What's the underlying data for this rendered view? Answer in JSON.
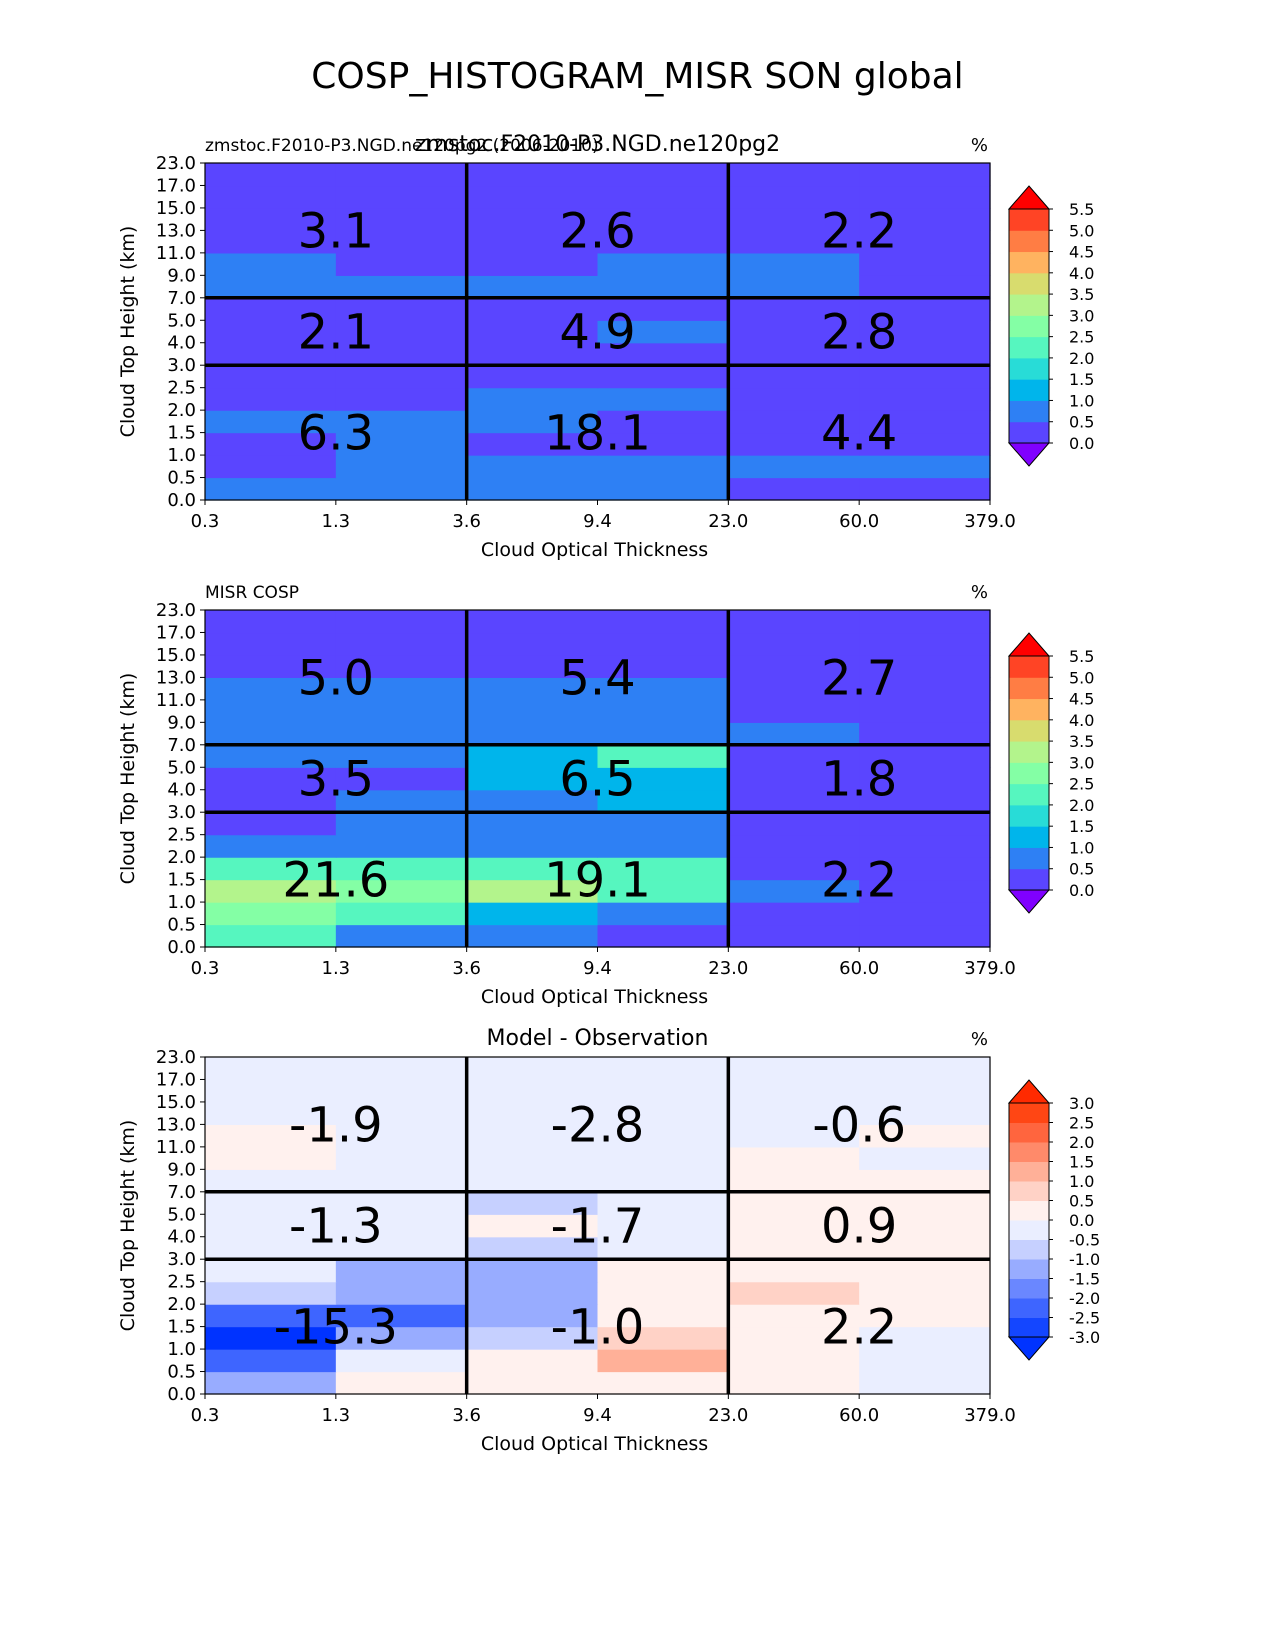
{
  "figure": {
    "title": "COSP_HISTOGRAM_MISR SON global"
  },
  "chart_data": [
    {
      "type": "heatmap",
      "title": "zmstoc.F2010-P3.NGD.ne120pg2",
      "left_title": "zmstoc.F2010-P3.NGD.ne120pg2 (2006-2010)",
      "units": "%",
      "xlabel": "Cloud Optical Thickness",
      "ylabel": "Cloud Top Height (km)",
      "x_ticks": [
        "0.3",
        "1.3",
        "3.6",
        "9.4",
        "23.0",
        "60.0",
        "379.0"
      ],
      "y_ticks": [
        "0.0",
        "0.5",
        "1.0",
        "1.5",
        "2.0",
        "2.5",
        "3.0",
        "4.0",
        "5.0",
        "7.0",
        "9.0",
        "11.0",
        "13.0",
        "15.0",
        "17.0",
        "23.0"
      ],
      "colormap": "rainbow",
      "levels": [
        0.0,
        0.5,
        1.0,
        1.5,
        2.0,
        2.5,
        3.0,
        3.5,
        4.0,
        4.5,
        5.0,
        5.5
      ],
      "colorbar_labels": [
        "0.0",
        "0.5",
        "1.0",
        "1.5",
        "2.0",
        "2.5",
        "3.0",
        "3.5",
        "4.0",
        "4.5",
        "5.0",
        "5.5"
      ],
      "values": [
        [
          0.6,
          0.6,
          0.6,
          0.6,
          0.3,
          0.3
        ],
        [
          0.3,
          0.6,
          0.6,
          0.6,
          0.6,
          0.6
        ],
        [
          0.3,
          0.6,
          0.3,
          0.3,
          0.3,
          0.3
        ],
        [
          0.6,
          0.6,
          0.6,
          0.3,
          0.3,
          0.3
        ],
        [
          0.3,
          0.3,
          0.6,
          0.6,
          0.3,
          0.3
        ],
        [
          0.3,
          0.3,
          0.3,
          0.3,
          0.3,
          0.3
        ],
        [
          0.3,
          0.3,
          0.3,
          0.3,
          0.3,
          0.3
        ],
        [
          0.3,
          0.3,
          0.3,
          0.6,
          0.3,
          0.3
        ],
        [
          0.3,
          0.3,
          0.3,
          0.3,
          0.3,
          0.3
        ],
        [
          0.6,
          0.6,
          0.6,
          0.6,
          0.6,
          0.3
        ],
        [
          0.6,
          0.3,
          0.3,
          0.6,
          0.6,
          0.3
        ],
        [
          0.3,
          0.3,
          0.3,
          0.3,
          0.3,
          0.3
        ],
        [
          0.3,
          0.3,
          0.3,
          0.3,
          0.3,
          0.3
        ],
        [
          0.3,
          0.3,
          0.3,
          0.3,
          0.3,
          0.3
        ],
        [
          0.3,
          0.3,
          0.3,
          0.3,
          0.3,
          0.3
        ]
      ],
      "block_labels": [
        [
          "6.3",
          "18.1",
          "4.4"
        ],
        [
          "2.1",
          "4.9",
          "2.8"
        ],
        [
          "3.1",
          "2.6",
          "2.2"
        ]
      ]
    },
    {
      "type": "heatmap",
      "title": "",
      "left_title": "MISR COSP",
      "units": "%",
      "xlabel": "Cloud Optical Thickness",
      "ylabel": "Cloud Top Height (km)",
      "x_ticks": [
        "0.3",
        "1.3",
        "3.6",
        "9.4",
        "23.0",
        "60.0",
        "379.0"
      ],
      "y_ticks": [
        "0.0",
        "0.5",
        "1.0",
        "1.5",
        "2.0",
        "2.5",
        "3.0",
        "4.0",
        "5.0",
        "7.0",
        "9.0",
        "11.0",
        "13.0",
        "15.0",
        "17.0",
        "23.0"
      ],
      "colormap": "rainbow",
      "levels": [
        0.0,
        0.5,
        1.0,
        1.5,
        2.0,
        2.5,
        3.0,
        3.5,
        4.0,
        4.5,
        5.0,
        5.5
      ],
      "colorbar_labels": [
        "0.0",
        "0.5",
        "1.0",
        "1.5",
        "2.0",
        "2.5",
        "3.0",
        "3.5",
        "4.0",
        "4.5",
        "5.0",
        "5.5"
      ],
      "values": [
        [
          2.3,
          0.6,
          0.6,
          0.3,
          0.3,
          0.3
        ],
        [
          2.7,
          2.2,
          1.3,
          0.6,
          0.3,
          0.3
        ],
        [
          3.3,
          2.7,
          3.3,
          2.3,
          0.6,
          0.3
        ],
        [
          2.3,
          2.3,
          2.3,
          2.3,
          0.3,
          0.3
        ],
        [
          0.6,
          0.6,
          0.6,
          0.6,
          0.3,
          0.3
        ],
        [
          0.3,
          0.6,
          0.6,
          0.6,
          0.3,
          0.3
        ],
        [
          0.3,
          0.6,
          0.6,
          1.3,
          0.3,
          0.3
        ],
        [
          0.3,
          0.3,
          1.3,
          1.3,
          0.3,
          0.3
        ],
        [
          0.6,
          0.6,
          1.3,
          2.3,
          0.3,
          0.3
        ],
        [
          0.6,
          0.6,
          0.6,
          0.6,
          0.6,
          0.3
        ],
        [
          0.6,
          0.6,
          0.6,
          0.6,
          0.3,
          0.3
        ],
        [
          0.6,
          0.6,
          0.6,
          0.6,
          0.3,
          0.3
        ],
        [
          0.3,
          0.3,
          0.3,
          0.3,
          0.3,
          0.3
        ],
        [
          0.3,
          0.3,
          0.3,
          0.3,
          0.3,
          0.3
        ],
        [
          0.3,
          0.3,
          0.3,
          0.3,
          0.3,
          0.3
        ]
      ],
      "block_labels": [
        [
          "21.6",
          "19.1",
          "2.2"
        ],
        [
          "3.5",
          "6.5",
          "1.8"
        ],
        [
          "5.0",
          "5.4",
          "2.7"
        ]
      ]
    },
    {
      "type": "heatmap",
      "title": "Model - Observation",
      "left_title": "",
      "units": "%",
      "xlabel": "Cloud Optical Thickness",
      "ylabel": "Cloud Top Height (km)",
      "x_ticks": [
        "0.3",
        "1.3",
        "3.6",
        "9.4",
        "23.0",
        "60.0",
        "379.0"
      ],
      "y_ticks": [
        "0.0",
        "0.5",
        "1.0",
        "1.5",
        "2.0",
        "2.5",
        "3.0",
        "4.0",
        "5.0",
        "7.0",
        "9.0",
        "11.0",
        "13.0",
        "15.0",
        "17.0",
        "23.0"
      ],
      "colormap": "bwr",
      "levels": [
        -3.0,
        -2.5,
        -2.0,
        -1.5,
        -1.0,
        -0.5,
        0.0,
        0.5,
        1.0,
        1.5,
        2.0,
        2.5,
        3.0
      ],
      "colorbar_labels": [
        "-3.0",
        "-2.5",
        "-2.0",
        "-1.5",
        "-1.0",
        "-0.5",
        "0.0",
        "0.5",
        "1.0",
        "1.5",
        "2.0",
        "2.5",
        "3.0"
      ],
      "values": [
        [
          -1.3,
          0.2,
          0.2,
          0.2,
          0.2,
          -0.2
        ],
        [
          -2.3,
          -0.2,
          0.2,
          1.3,
          0.2,
          -0.2
        ],
        [
          -3.1,
          -1.3,
          -0.8,
          0.8,
          0.2,
          -0.2
        ],
        [
          -2.3,
          -2.3,
          -1.3,
          0.2,
          0.2,
          0.2
        ],
        [
          -0.8,
          -1.3,
          -1.3,
          0.2,
          0.8,
          0.2
        ],
        [
          -0.2,
          -1.3,
          -1.3,
          0.2,
          0.2,
          0.2
        ],
        [
          -0.2,
          -0.2,
          -0.8,
          -0.2,
          0.2,
          0.2
        ],
        [
          -0.2,
          -0.2,
          0.1,
          -0.2,
          0.2,
          0.2
        ],
        [
          -0.2,
          -0.2,
          -0.8,
          -0.2,
          0.2,
          0.2
        ],
        [
          -0.2,
          -0.2,
          -0.2,
          -0.2,
          0.2,
          0.2
        ],
        [
          0.2,
          -0.2,
          -0.2,
          -0.2,
          0.2,
          -0.2
        ],
        [
          0.2,
          -0.2,
          -0.2,
          -0.2,
          -0.2,
          0.2
        ],
        [
          -0.2,
          -0.2,
          -0.2,
          -0.2,
          -0.2,
          -0.2
        ],
        [
          -0.2,
          -0.2,
          -0.2,
          -0.2,
          -0.2,
          -0.2
        ],
        [
          -0.2,
          -0.2,
          -0.2,
          -0.2,
          -0.2,
          -0.2
        ]
      ],
      "block_labels": [
        [
          "-15.3",
          "-1.0",
          "2.2"
        ],
        [
          "-1.3",
          "-1.7",
          "0.9"
        ],
        [
          "-1.9",
          "-2.8",
          "-0.6"
        ]
      ]
    }
  ],
  "colors": {
    "rainbow": [
      "#8000ff",
      "#5a45ff",
      "#2e80f4",
      "#00b5eb",
      "#28dcd7",
      "#56f6bf",
      "#84ffa5",
      "#b3f48c",
      "#d8dc6e",
      "#ffb360",
      "#ff7d44",
      "#ff4425",
      "#ff0000"
    ],
    "bwr": [
      "#0033ff",
      "#1446ff",
      "#3e65ff",
      "#6a87ff",
      "#98acff",
      "#c6d0ff",
      "#eaeeff",
      "#fff1ee",
      "#ffd2c6",
      "#ffb098",
      "#ff8a6a",
      "#ff653e",
      "#ff4614",
      "#ff2a00"
    ]
  }
}
